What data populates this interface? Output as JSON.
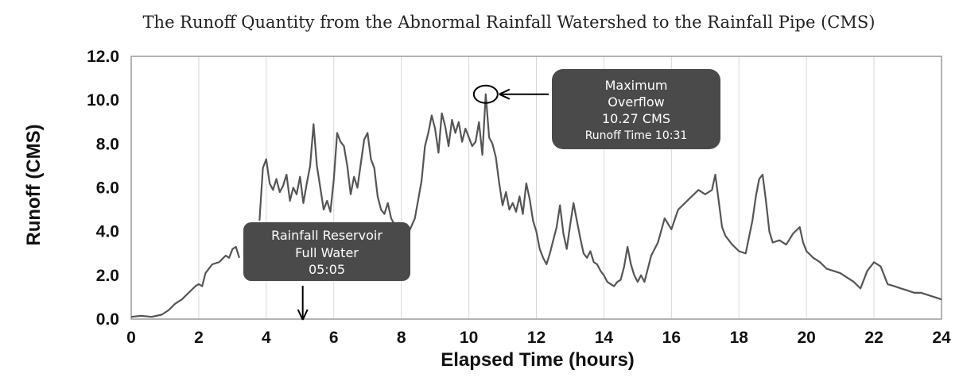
{
  "chart_data": {
    "type": "line",
    "title": "The Runoff Quantity from the Abnormal Rainfall Watershed to the Rainfall Pipe (CMS)",
    "xlabel": "Elapsed Time (hours)",
    "ylabel": "Runoff (CMS)",
    "xlim": [
      0,
      24
    ],
    "ylim": [
      0,
      12
    ],
    "xticks": [
      "0",
      "2",
      "4",
      "6",
      "8",
      "10",
      "12",
      "14",
      "16",
      "18",
      "20",
      "22",
      "24"
    ],
    "yticks": [
      "0.0",
      "2.0",
      "4.0",
      "6.0",
      "8.0",
      "10.0",
      "12.0"
    ],
    "grid": "vertical",
    "legend": "none",
    "line_color": "#555555",
    "series": [
      {
        "x": [
          0,
          0.3,
          0.6,
          0.9,
          1.1,
          1.3,
          1.5,
          1.7,
          1.9,
          2.0,
          2.1,
          2.2,
          2.4,
          2.6,
          2.8,
          2.9,
          3.0,
          3.1,
          3.2
        ],
        "y": [
          0.1,
          0.15,
          0.1,
          0.2,
          0.4,
          0.7,
          0.9,
          1.2,
          1.5,
          1.6,
          1.5,
          2.1,
          2.5,
          2.6,
          2.9,
          2.8,
          3.2,
          3.3,
          2.8
        ]
      },
      {
        "x": [
          3.8,
          3.9,
          4.0,
          4.1,
          4.2,
          4.3,
          4.4,
          4.5,
          4.6,
          4.7,
          4.8,
          4.9,
          5.0,
          5.1,
          5.2,
          5.3,
          5.4,
          5.5,
          5.6,
          5.7,
          5.8,
          5.9,
          6.0,
          6.1,
          6.2,
          6.3,
          6.4,
          6.5,
          6.6,
          6.7,
          6.8,
          6.9,
          7.0,
          7.1,
          7.2,
          7.3,
          7.4,
          7.5,
          7.6,
          7.7,
          7.8
        ],
        "y": [
          4.5,
          6.9,
          7.3,
          6.2,
          5.9,
          6.4,
          5.8,
          6.1,
          6.6,
          5.4,
          6.0,
          5.7,
          6.5,
          5.3,
          6.2,
          7.0,
          8.9,
          7.0,
          6.0,
          5.0,
          5.4,
          4.9,
          6.4,
          8.5,
          8.1,
          7.9,
          7.0,
          5.7,
          6.5,
          6.0,
          7.1,
          8.2,
          8.5,
          7.3,
          6.9,
          5.6,
          5.0,
          4.8,
          5.3,
          4.6,
          4.3
        ]
      },
      {
        "x": [
          8.0,
          8.2,
          8.4,
          8.6,
          8.7,
          8.8,
          8.9,
          9.0,
          9.1,
          9.2,
          9.3,
          9.4,
          9.5,
          9.6,
          9.7,
          9.8,
          9.9,
          10.0,
          10.1,
          10.2,
          10.3,
          10.4,
          10.5,
          10.6,
          10.7,
          10.8,
          10.9,
          11.0,
          11.1,
          11.2,
          11.3,
          11.4,
          11.5,
          11.6,
          11.7,
          11.8,
          11.9,
          12.0,
          12.1,
          12.2,
          12.3,
          12.4,
          12.5,
          12.6,
          12.7,
          12.8,
          12.9,
          13.0,
          13.1,
          13.2,
          13.3,
          13.4,
          13.5,
          13.6,
          13.7,
          13.8,
          13.9,
          14.0,
          14.1,
          14.2,
          14.3,
          14.4,
          14.5,
          14.6,
          14.7,
          14.8,
          14.9,
          15.0,
          15.1,
          15.2,
          15.4,
          15.6,
          15.8,
          16.0,
          16.2,
          16.4,
          16.6,
          16.8,
          17.0,
          17.2,
          17.3,
          17.4,
          17.5,
          17.6,
          17.8,
          18.0,
          18.2,
          18.4,
          18.5,
          18.6,
          18.7,
          18.8,
          18.9,
          19.0,
          19.2,
          19.4,
          19.6,
          19.8,
          19.9,
          20.0,
          20.2,
          20.4,
          20.6,
          20.8,
          21.0,
          21.2,
          21.4,
          21.6,
          21.8,
          22.0,
          22.2,
          22.4,
          22.6,
          22.8,
          23.0,
          23.2,
          23.4,
          23.6,
          23.8,
          24.0
        ],
        "y": [
          3.5,
          3.9,
          4.6,
          6.3,
          7.9,
          8.5,
          9.3,
          8.7,
          7.6,
          9.4,
          8.8,
          7.9,
          9.1,
          8.5,
          9.0,
          8.1,
          8.7,
          8.3,
          7.9,
          8.1,
          9.0,
          7.5,
          10.27,
          8.3,
          8.0,
          7.4,
          6.2,
          5.2,
          5.8,
          5.0,
          5.3,
          4.9,
          5.6,
          4.8,
          6.2,
          5.5,
          4.5,
          4.0,
          3.2,
          2.8,
          2.5,
          3.0,
          3.6,
          4.2,
          5.2,
          3.9,
          3.2,
          4.3,
          5.3,
          4.5,
          3.7,
          3.0,
          2.8,
          3.1,
          2.6,
          2.5,
          2.2,
          2.0,
          1.7,
          1.6,
          1.5,
          1.7,
          1.8,
          2.4,
          3.3,
          2.5,
          2.0,
          1.7,
          2.0,
          1.7,
          2.9,
          3.5,
          4.6,
          4.1,
          5.0,
          5.3,
          5.6,
          5.9,
          5.7,
          5.9,
          6.6,
          5.4,
          4.2,
          3.8,
          3.4,
          3.1,
          3.0,
          4.5,
          5.6,
          6.4,
          6.6,
          5.4,
          4.0,
          3.5,
          3.6,
          3.4,
          3.9,
          4.2,
          3.5,
          3.1,
          2.8,
          2.6,
          2.3,
          2.2,
          2.1,
          1.9,
          1.7,
          1.4,
          2.2,
          2.6,
          2.4,
          1.6,
          1.5,
          1.4,
          1.3,
          1.2,
          1.2,
          1.1,
          1.0,
          0.9
        ]
      }
    ],
    "annotations": [
      {
        "id": "max",
        "lines": [
          "Maximum",
          "Overflow",
          "10.27 CMS",
          "Runoff Time 10:31"
        ],
        "point": [
          10.5,
          10.27
        ]
      },
      {
        "id": "reservoir",
        "lines": [
          "Rainfall  Reservoir",
          "Full  Water",
          "05:05"
        ],
        "point": [
          5.08,
          0
        ]
      }
    ]
  }
}
